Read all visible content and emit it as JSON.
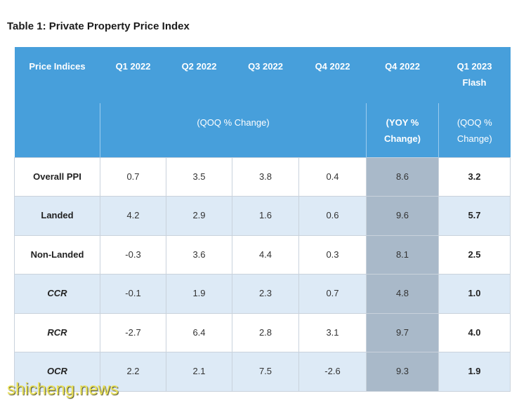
{
  "colors": {
    "header_bg": "#479fdb",
    "header_text": "#ffffff",
    "band_bg": "#ddeaf6",
    "highlight_bg": "#a9b9c9",
    "grid_line": "#c9d2dc",
    "cell_text": "#333333",
    "watermark": "#ece35a"
  },
  "watermark": "shicheng.news",
  "chart_data": {
    "type": "table",
    "title": "Table 1: Private Property Price Index",
    "row_header": "Price Indices",
    "columns": [
      "Q1 2022",
      "Q2 2022",
      "Q3 2022",
      "Q4 2022",
      "Q4 2022",
      "Q1 2023 Flash"
    ],
    "column_groups": [
      "(QOQ % Change)",
      "(YOY % Change)",
      "(QOQ % Change)"
    ],
    "rows": [
      {
        "label": "Overall PPI",
        "values": [
          0.7,
          3.5,
          3.8,
          0.4,
          8.6,
          3.2
        ]
      },
      {
        "label": "Landed",
        "values": [
          4.2,
          2.9,
          1.6,
          0.6,
          9.6,
          5.7
        ]
      },
      {
        "label": "Non-Landed",
        "values": [
          -0.3,
          3.6,
          4.4,
          0.3,
          8.1,
          2.5
        ]
      },
      {
        "label": "CCR",
        "values": [
          -0.1,
          1.9,
          2.3,
          0.7,
          4.8,
          1.0
        ]
      },
      {
        "label": "RCR",
        "values": [
          -2.7,
          6.4,
          2.8,
          3.1,
          9.7,
          4.0
        ]
      },
      {
        "label": "OCR",
        "values": [
          2.2,
          2.1,
          7.5,
          -2.6,
          9.3,
          1.9
        ]
      }
    ]
  }
}
